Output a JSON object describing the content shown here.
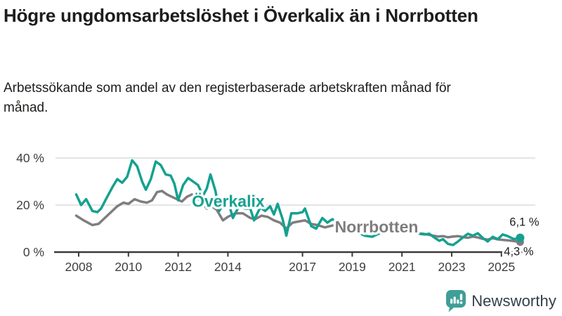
{
  "header": {
    "title": "Högre ungdomsarbetslöshet i Överkalix än i Norrbotten",
    "subtitle": "Arbetssökande som andel av den registerbaserade arbetskraften månad för månad."
  },
  "chart_data": {
    "type": "line",
    "title": "Högre ungdomsarbetslöshet i Överkalix än i Norrbotten",
    "xlabel": "",
    "ylabel": "Arbetssökande som andel av den registerbaserade arbetskraften",
    "grid": "horizontal-only",
    "legend_position": "inline-labels",
    "ylim": [
      0,
      43
    ],
    "xlim": [
      2007.6,
      2026.3
    ],
    "yticks": [
      {
        "value": 0,
        "label": "0 %"
      },
      {
        "value": 20,
        "label": "20 %"
      },
      {
        "value": 40,
        "label": "40 %"
      }
    ],
    "xticks": [
      {
        "value": 2008,
        "label": "2008"
      },
      {
        "value": 2010,
        "label": "2010"
      },
      {
        "value": 2012,
        "label": "2012"
      },
      {
        "value": 2014,
        "label": "2014"
      },
      {
        "value": 2017,
        "label": "2017"
      },
      {
        "value": 2019,
        "label": "2019"
      },
      {
        "value": 2021,
        "label": "2021"
      },
      {
        "value": 2023,
        "label": "2023"
      },
      {
        "value": 2025,
        "label": "2025"
      }
    ],
    "series": [
      {
        "name": "Överkalix",
        "slug": "overkalix",
        "color": "#14a18f",
        "end_label": "6,1 %",
        "end_value": 6.1,
        "label_pos": [
          2012.55,
          19.3
        ],
        "points": [
          [
            2007.9,
            24.5
          ],
          [
            2008.1,
            20.0
          ],
          [
            2008.3,
            22.5
          ],
          [
            2008.55,
            17.5
          ],
          [
            2008.75,
            17.0
          ],
          [
            2008.9,
            18.5
          ],
          [
            2009.1,
            22.5
          ],
          [
            2009.35,
            27.5
          ],
          [
            2009.55,
            31.0
          ],
          [
            2009.75,
            29.5
          ],
          [
            2009.95,
            32.0
          ],
          [
            2010.15,
            39.0
          ],
          [
            2010.35,
            36.5
          ],
          [
            2010.55,
            30.0
          ],
          [
            2010.7,
            26.5
          ],
          [
            2010.9,
            31.0
          ],
          [
            2011.1,
            38.5
          ],
          [
            2011.3,
            37.0
          ],
          [
            2011.5,
            33.0
          ],
          [
            2011.7,
            32.5
          ],
          [
            2011.85,
            29.0
          ],
          [
            2012.0,
            22.0
          ],
          [
            2012.2,
            28.5
          ],
          [
            2012.4,
            31.5
          ],
          [
            2012.6,
            30.0
          ],
          [
            2012.8,
            28.5
          ],
          [
            2013.0,
            24.0
          ],
          [
            2013.15,
            27.0
          ],
          [
            2013.3,
            33.0
          ],
          [
            2013.5,
            26.0
          ],
          [
            2013.65,
            17.5
          ],
          [
            2013.8,
            20.0
          ],
          [
            2014.0,
            22.0
          ],
          [
            2014.2,
            14.5
          ],
          [
            2014.45,
            19.5
          ],
          [
            2014.7,
            18.5
          ],
          [
            2014.9,
            18.5
          ],
          [
            2015.05,
            13.5
          ],
          [
            2015.3,
            19.0
          ],
          [
            2015.5,
            17.5
          ],
          [
            2015.7,
            19.5
          ],
          [
            2015.85,
            16.0
          ],
          [
            2016.0,
            20.5
          ],
          [
            2016.2,
            14.0
          ],
          [
            2016.35,
            7.0
          ],
          [
            2016.55,
            16.5
          ],
          [
            2016.8,
            16.5
          ],
          [
            2017.0,
            17.0
          ],
          [
            2017.1,
            18.5
          ],
          [
            2017.35,
            11.0
          ],
          [
            2017.55,
            10.0
          ],
          [
            2017.8,
            14.5
          ],
          [
            2018.0,
            12.5
          ],
          [
            2018.2,
            14.0
          ],
          [
            2018.4,
            12.5
          ],
          [
            2018.65,
            11.0
          ],
          [
            2018.9,
            9.5
          ],
          [
            2019.2,
            8.5
          ],
          [
            2019.5,
            7.0
          ],
          [
            2019.8,
            6.5
          ],
          [
            2020.1,
            8.0
          ],
          [
            2020.35,
            12.0
          ],
          [
            2020.6,
            12.5
          ],
          [
            2020.9,
            11.5
          ],
          [
            2021.15,
            10.0
          ],
          [
            2021.45,
            8.5
          ],
          [
            2021.7,
            7.8
          ],
          [
            2021.9,
            7.5
          ],
          [
            2022.1,
            7.8
          ],
          [
            2022.3,
            6.2
          ],
          [
            2022.5,
            4.8
          ],
          [
            2022.65,
            5.5
          ],
          [
            2022.85,
            3.5
          ],
          [
            2023.05,
            3.0
          ],
          [
            2023.25,
            4.5
          ],
          [
            2023.45,
            6.2
          ],
          [
            2023.65,
            7.8
          ],
          [
            2023.85,
            7.0
          ],
          [
            2024.05,
            8.0
          ],
          [
            2024.25,
            6.0
          ],
          [
            2024.45,
            4.5
          ],
          [
            2024.65,
            6.5
          ],
          [
            2024.85,
            5.5
          ],
          [
            2025.05,
            7.5
          ],
          [
            2025.25,
            6.8
          ],
          [
            2025.5,
            5.5
          ],
          [
            2025.75,
            6.1
          ]
        ]
      },
      {
        "name": "Norrbotten",
        "slug": "norrbotten",
        "color": "#7e7e7e",
        "end_label": "4,3 %",
        "end_value": 4.3,
        "label_pos": [
          2018.3,
          8.3
        ],
        "points": [
          [
            2007.9,
            15.5
          ],
          [
            2008.2,
            13.5
          ],
          [
            2008.55,
            11.5
          ],
          [
            2008.8,
            12.0
          ],
          [
            2009.05,
            14.5
          ],
          [
            2009.3,
            17.0
          ],
          [
            2009.55,
            19.5
          ],
          [
            2009.8,
            21.0
          ],
          [
            2010.0,
            20.5
          ],
          [
            2010.25,
            22.5
          ],
          [
            2010.5,
            21.5
          ],
          [
            2010.75,
            21.0
          ],
          [
            2010.95,
            22.0
          ],
          [
            2011.15,
            25.5
          ],
          [
            2011.35,
            26.0
          ],
          [
            2011.55,
            24.5
          ],
          [
            2011.75,
            23.5
          ],
          [
            2011.95,
            22.5
          ],
          [
            2012.15,
            21.5
          ],
          [
            2012.35,
            23.5
          ],
          [
            2012.55,
            24.5
          ],
          [
            2012.75,
            23.0
          ],
          [
            2012.95,
            21.5
          ],
          [
            2013.15,
            18.5
          ],
          [
            2013.35,
            19.5
          ],
          [
            2013.55,
            18.0
          ],
          [
            2013.8,
            13.5
          ],
          [
            2014.0,
            15.0
          ],
          [
            2014.3,
            16.5
          ],
          [
            2014.6,
            16.5
          ],
          [
            2014.9,
            14.5
          ],
          [
            2015.1,
            14.0
          ],
          [
            2015.35,
            15.5
          ],
          [
            2015.6,
            15.0
          ],
          [
            2015.85,
            13.5
          ],
          [
            2016.1,
            12.5
          ],
          [
            2016.35,
            10.0
          ],
          [
            2016.6,
            12.5
          ],
          [
            2016.85,
            13.0
          ],
          [
            2017.1,
            13.5
          ],
          [
            2017.35,
            12.0
          ],
          [
            2017.6,
            11.5
          ],
          [
            2017.9,
            10.5
          ],
          [
            2018.1,
            11.0
          ],
          [
            2018.3,
            11.5
          ],
          [
            2018.6,
            10.5
          ],
          [
            2018.9,
            9.5
          ],
          [
            2019.2,
            9.0
          ],
          [
            2019.5,
            8.5
          ],
          [
            2019.8,
            8.0
          ],
          [
            2020.1,
            9.0
          ],
          [
            2020.4,
            10.5
          ],
          [
            2020.7,
            10.5
          ],
          [
            2021.0,
            9.5
          ],
          [
            2021.3,
            8.8
          ],
          [
            2021.6,
            8.0
          ],
          [
            2021.85,
            7.8
          ],
          [
            2022.05,
            7.4
          ],
          [
            2022.25,
            7.0
          ],
          [
            2022.45,
            6.6
          ],
          [
            2022.65,
            6.8
          ],
          [
            2022.85,
            6.3
          ],
          [
            2023.05,
            6.6
          ],
          [
            2023.25,
            6.8
          ],
          [
            2023.45,
            6.4
          ],
          [
            2023.65,
            6.1
          ],
          [
            2023.85,
            6.6
          ],
          [
            2024.05,
            6.2
          ],
          [
            2024.25,
            5.6
          ],
          [
            2024.45,
            5.3
          ],
          [
            2024.65,
            5.9
          ],
          [
            2024.85,
            5.4
          ],
          [
            2025.05,
            5.2
          ],
          [
            2025.25,
            5.0
          ],
          [
            2025.5,
            4.7
          ],
          [
            2025.75,
            4.3
          ]
        ]
      }
    ],
    "colors": {
      "grid": "#dcdcdc",
      "axis": "#3a3a3a",
      "tick_label": "#3f3f3f",
      "end_label": "#1d1d1b"
    }
  },
  "footer": {
    "brand": "Newsworthy",
    "brand_color": "#31404d",
    "icon": "newsworthy-bar-chart-bubble-icon",
    "icon_color": "#3f9e97"
  }
}
